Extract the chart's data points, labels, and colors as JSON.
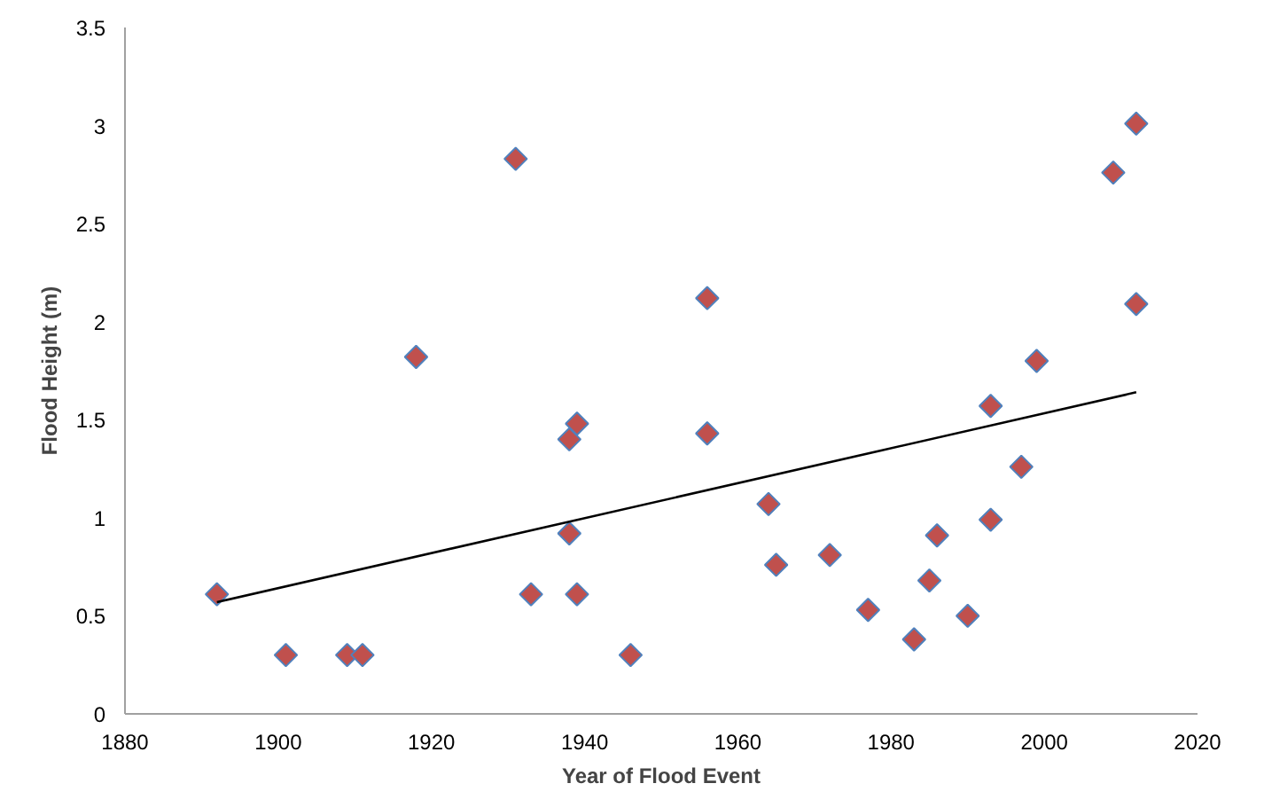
{
  "chart_data": {
    "type": "scatter",
    "xlabel": "Year of Flood Event",
    "ylabel": "Flood Height (m)",
    "xlim": [
      1880,
      2020
    ],
    "xticks": [
      1880,
      1900,
      1920,
      1940,
      1960,
      1980,
      2000,
      2020
    ],
    "ylim": [
      0,
      3.5
    ],
    "yticks": [
      0,
      {
        "value": 0.5,
        "label": "0.5"
      },
      1,
      {
        "value": 1.5,
        "label": "1.5"
      },
      2,
      {
        "value": 2.5,
        "label": "2.5"
      },
      3,
      {
        "value": 3.5,
        "label": "3.5"
      }
    ],
    "grid": false,
    "series": [
      {
        "marker": "diamond",
        "color": "#c0504d",
        "x": [
          1892,
          1901,
          1909,
          1911,
          1918,
          1931,
          1933,
          1938,
          1938,
          1939,
          1939,
          1946,
          1956,
          1956,
          1964,
          1965,
          1972,
          1977,
          1983,
          1985,
          1986,
          1990,
          1993,
          1993,
          1997,
          1999,
          2009,
          2012,
          2012
        ],
        "values": [
          0.61,
          0.3,
          0.3,
          0.3,
          1.82,
          2.83,
          0.61,
          1.4,
          0.92,
          1.48,
          0.61,
          0.3,
          2.12,
          1.43,
          1.07,
          0.76,
          0.81,
          0.53,
          0.38,
          0.68,
          0.91,
          0.5,
          1.57,
          0.99,
          1.26,
          1.8,
          2.76,
          3.01,
          2.09
        ]
      },
      {
        "type": "line",
        "color": "#000000",
        "x": [
          1892,
          2012
        ],
        "values": [
          0.57,
          1.64
        ]
      }
    ]
  }
}
